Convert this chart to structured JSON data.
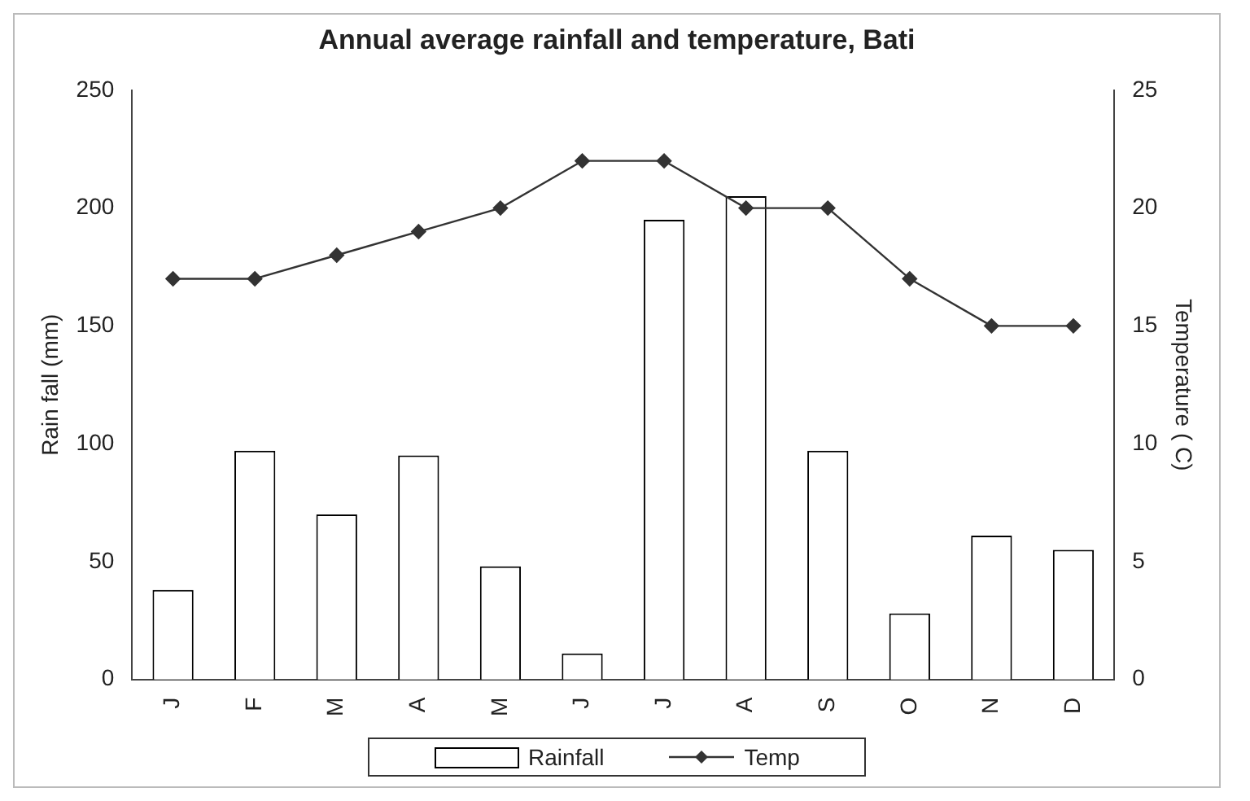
{
  "chart_data": {
    "type": "bar",
    "title": "Annual average rainfall and temperature, Bati",
    "ylabel": "Rain fall (mm)",
    "y2label": "Temperature ( C)",
    "categories": [
      "J",
      "F",
      "M",
      "A",
      "M",
      "J",
      "J",
      "A",
      "S",
      "O",
      "N",
      "D"
    ],
    "series": [
      {
        "name": "Rainfall",
        "color": "#ffffff",
        "values": [
          38,
          97,
          70,
          95,
          48,
          11,
          195,
          205,
          97,
          28,
          61,
          55
        ]
      },
      {
        "name": "Temp",
        "type": "line",
        "axis": "y2",
        "color": "#333333",
        "marker": "diamond",
        "line_style": "solid",
        "values": [
          17,
          17,
          18,
          19,
          20,
          22,
          22,
          20,
          20,
          17,
          15,
          15
        ]
      }
    ],
    "ylim": [
      0,
      250
    ],
    "yticks": [
      0,
      50,
      100,
      150,
      200,
      250
    ],
    "y2lim": [
      0,
      25
    ],
    "y2ticks": [
      0,
      5,
      10,
      15,
      20,
      25
    ],
    "grid": false,
    "legend": "bottom"
  }
}
